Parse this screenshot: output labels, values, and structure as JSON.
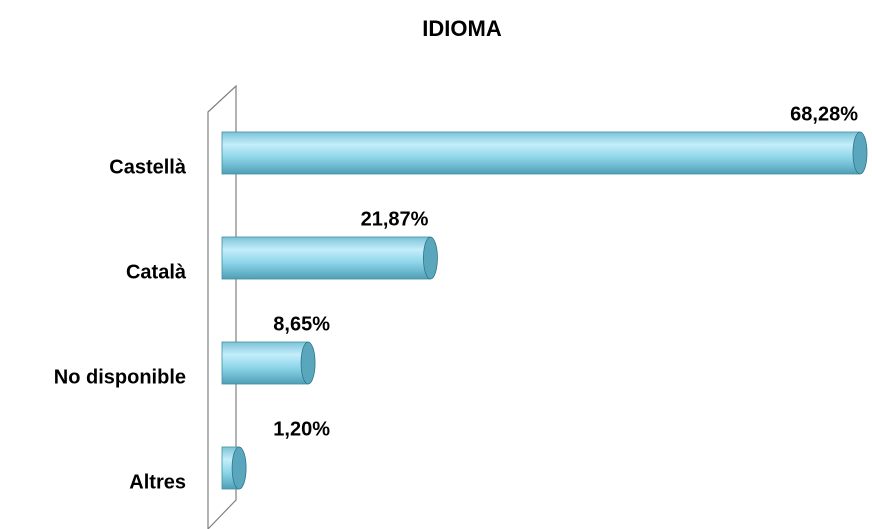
{
  "chart_data": {
    "type": "bar",
    "orientation": "horizontal",
    "title": "IDIOMA",
    "categories": [
      "Castellà",
      "Català",
      "No disponible",
      "Altres"
    ],
    "values": [
      68.28,
      21.87,
      8.65,
      1.2
    ],
    "value_labels": [
      "68,28%",
      "21,87%",
      "8,65%",
      "1,20%"
    ],
    "color": "#8fd6ea"
  }
}
